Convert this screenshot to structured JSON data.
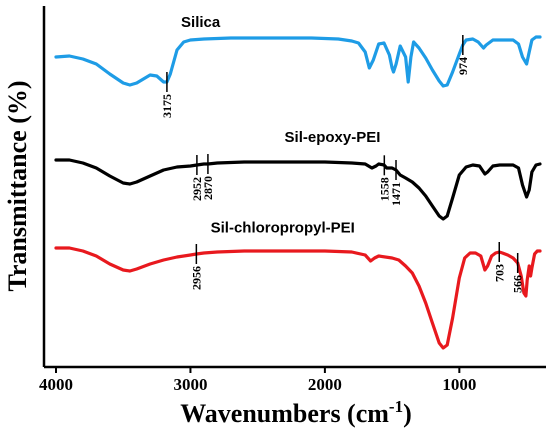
{
  "chart_data": {
    "type": "line",
    "xlabel": "Wavenumbers (cm",
    "xlabel_sup": "-1",
    "xlabel_close": ")",
    "ylabel": "Transmittance (%)",
    "xlim": [
      4000,
      400
    ],
    "x_reversed": true,
    "xticks": [
      4000,
      3000,
      2000,
      1000
    ],
    "grid": false,
    "legend": "labels-on-curves",
    "series": [
      {
        "name": "Silica",
        "color": "#1e9ce6",
        "points": [
          [
            4000,
            45
          ],
          [
            3900,
            44
          ],
          [
            3800,
            47
          ],
          [
            3700,
            52
          ],
          [
            3600,
            62
          ],
          [
            3500,
            71
          ],
          [
            3450,
            73
          ],
          [
            3400,
            71
          ],
          [
            3300,
            63
          ],
          [
            3250,
            64
          ],
          [
            3200,
            70
          ],
          [
            3175,
            70
          ],
          [
            3150,
            62
          ],
          [
            3100,
            38
          ],
          [
            3050,
            30
          ],
          [
            3000,
            28
          ],
          [
            2900,
            27
          ],
          [
            2700,
            26
          ],
          [
            2500,
            26
          ],
          [
            2300,
            26
          ],
          [
            2100,
            26
          ],
          [
            1900,
            27
          ],
          [
            1800,
            29
          ],
          [
            1750,
            31
          ],
          [
            1700,
            40
          ],
          [
            1670,
            56
          ],
          [
            1640,
            48
          ],
          [
            1600,
            32
          ],
          [
            1560,
            31
          ],
          [
            1520,
            43
          ],
          [
            1500,
            56
          ],
          [
            1490,
            60
          ],
          [
            1470,
            52
          ],
          [
            1440,
            34
          ],
          [
            1400,
            45
          ],
          [
            1380,
            70
          ],
          [
            1360,
            45
          ],
          [
            1340,
            30
          ],
          [
            1300,
            36
          ],
          [
            1250,
            46
          ],
          [
            1200,
            58
          ],
          [
            1150,
            69
          ],
          [
            1120,
            74
          ],
          [
            1090,
            73
          ],
          [
            1050,
            60
          ],
          [
            1000,
            42
          ],
          [
            974,
            33
          ],
          [
            950,
            28
          ],
          [
            900,
            27
          ],
          [
            860,
            30
          ],
          [
            820,
            36
          ],
          [
            800,
            33
          ],
          [
            750,
            28
          ],
          [
            700,
            28
          ],
          [
            600,
            28
          ],
          [
            560,
            32
          ],
          [
            530,
            45
          ],
          [
            500,
            52
          ],
          [
            480,
            40
          ],
          [
            460,
            28
          ],
          [
            430,
            25
          ],
          [
            400,
            25
          ]
        ]
      },
      {
        "name": "Sil-epoxy-PEI",
        "color": "#000000",
        "points": [
          [
            4000,
            110
          ],
          [
            3900,
            110
          ],
          [
            3800,
            113
          ],
          [
            3700,
            118
          ],
          [
            3600,
            126
          ],
          [
            3500,
            133
          ],
          [
            3450,
            134
          ],
          [
            3400,
            132
          ],
          [
            3300,
            126
          ],
          [
            3200,
            120
          ],
          [
            3100,
            117
          ],
          [
            3000,
            116
          ],
          [
            2952,
            115
          ],
          [
            2900,
            114
          ],
          [
            2870,
            114
          ],
          [
            2800,
            113
          ],
          [
            2600,
            112
          ],
          [
            2400,
            112
          ],
          [
            2200,
            112
          ],
          [
            2000,
            112
          ],
          [
            1800,
            113
          ],
          [
            1700,
            114
          ],
          [
            1650,
            118
          ],
          [
            1620,
            116
          ],
          [
            1600,
            114
          ],
          [
            1560,
            115
          ],
          [
            1540,
            118
          ],
          [
            1500,
            118
          ],
          [
            1471,
            120
          ],
          [
            1440,
            125
          ],
          [
            1400,
            128
          ],
          [
            1350,
            132
          ],
          [
            1300,
            138
          ],
          [
            1250,
            146
          ],
          [
            1200,
            156
          ],
          [
            1150,
            166
          ],
          [
            1120,
            169
          ],
          [
            1090,
            166
          ],
          [
            1050,
            148
          ],
          [
            1000,
            125
          ],
          [
            950,
            117
          ],
          [
            900,
            115
          ],
          [
            850,
            116
          ],
          [
            810,
            124
          ],
          [
            790,
            122
          ],
          [
            750,
            116
          ],
          [
            700,
            115
          ],
          [
            600,
            115
          ],
          [
            560,
            118
          ],
          [
            530,
            135
          ],
          [
            500,
            147
          ],
          [
            480,
            140
          ],
          [
            460,
            122
          ],
          [
            430,
            115
          ],
          [
            400,
            114
          ]
        ]
      },
      {
        "name": "Sil-chloropropyl-PEI",
        "color": "#e8191e",
        "points": [
          [
            4000,
            200
          ],
          [
            3900,
            200
          ],
          [
            3800,
            203
          ],
          [
            3700,
            208
          ],
          [
            3600,
            216
          ],
          [
            3500,
            222
          ],
          [
            3450,
            223
          ],
          [
            3400,
            221
          ],
          [
            3300,
            216
          ],
          [
            3200,
            212
          ],
          [
            3100,
            209
          ],
          [
            3000,
            207
          ],
          [
            2956,
            206
          ],
          [
            2900,
            205
          ],
          [
            2800,
            204
          ],
          [
            2600,
            203
          ],
          [
            2400,
            203
          ],
          [
            2200,
            203
          ],
          [
            2000,
            203
          ],
          [
            1800,
            204
          ],
          [
            1700,
            207
          ],
          [
            1660,
            213
          ],
          [
            1630,
            210
          ],
          [
            1600,
            208
          ],
          [
            1500,
            210
          ],
          [
            1450,
            212
          ],
          [
            1400,
            218
          ],
          [
            1350,
            225
          ],
          [
            1300,
            238
          ],
          [
            1250,
            255
          ],
          [
            1200,
            275
          ],
          [
            1150,
            295
          ],
          [
            1120,
            300
          ],
          [
            1090,
            297
          ],
          [
            1050,
            270
          ],
          [
            1000,
            230
          ],
          [
            960,
            210
          ],
          [
            920,
            205
          ],
          [
            880,
            205
          ],
          [
            840,
            208
          ],
          [
            810,
            222
          ],
          [
            790,
            218
          ],
          [
            760,
            208
          ],
          [
            730,
            205
          ],
          [
            703,
            204
          ],
          [
            680,
            205
          ],
          [
            640,
            207
          ],
          [
            600,
            210
          ],
          [
            566,
            215
          ],
          [
            540,
            228
          ],
          [
            520,
            245
          ],
          [
            505,
            248
          ],
          [
            495,
            232
          ],
          [
            480,
            218
          ],
          [
            470,
            228
          ],
          [
            460,
            220
          ],
          [
            440,
            206
          ],
          [
            420,
            203
          ],
          [
            400,
            203
          ]
        ]
      }
    ],
    "annotations": [
      {
        "series": 0,
        "x": 3175,
        "label": "3175"
      },
      {
        "series": 0,
        "x": 974,
        "label": "974"
      },
      {
        "series": 1,
        "x": 2952,
        "label": "2952"
      },
      {
        "series": 1,
        "x": 2870,
        "label": "2870"
      },
      {
        "series": 1,
        "x": 1558,
        "label": "1558"
      },
      {
        "series": 1,
        "x": 1471,
        "label": "1471"
      },
      {
        "series": 2,
        "x": 2956,
        "label": "2956"
      },
      {
        "series": 2,
        "x": 703,
        "label": "703"
      },
      {
        "series": 2,
        "x": 566,
        "label": "566"
      }
    ]
  }
}
